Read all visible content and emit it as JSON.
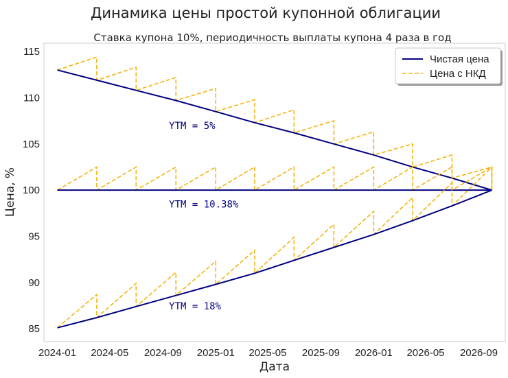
{
  "chart_data": {
    "type": "line",
    "title": "Динамика цены простой купонной облигации",
    "subtitle": "Ставка купона 10%, периодичность выплаты купона 4 раза в год",
    "xlabel": "Дата",
    "ylabel": "Цена, %",
    "ylim": [
      83.6,
      115.9
    ],
    "xlim": [
      "2023-12-01",
      "2026-11-01"
    ],
    "yticks": [
      85,
      90,
      95,
      100,
      105,
      110,
      115
    ],
    "xticks": [
      "2024-01",
      "2024-05",
      "2024-09",
      "2025-01",
      "2025-05",
      "2025-09",
      "2026-01",
      "2026-05",
      "2026-09"
    ],
    "grid": false,
    "legend_position": "top-right",
    "colors": {
      "clean": "#000080",
      "dirty": "#f5b40f",
      "annotation": "#000080"
    },
    "legend": [
      {
        "label": "Чистая цена",
        "style": "solid",
        "color": "#000080"
      },
      {
        "label": "Цена с НКД",
        "style": "dashed",
        "color": "#f5b40f"
      }
    ],
    "coupon_dates": [
      "2024-01-01",
      "2024-04-01",
      "2024-07-01",
      "2024-10-01",
      "2025-01-01",
      "2025-04-01",
      "2025-07-01",
      "2025-10-01",
      "2026-01-01",
      "2026-04-01",
      "2026-07-01",
      "2026-10-01"
    ],
    "series": [
      {
        "annotation": "YTM = 5%",
        "annotation_position": [
          "2024-09-15",
          106.6
        ],
        "clean": [
          113.0,
          111.9,
          110.8,
          109.7,
          108.5,
          107.3,
          106.2,
          105.0,
          103.8,
          102.5,
          101.3,
          100.0
        ]
      },
      {
        "annotation": "YTM = 10.38%",
        "annotation_position": [
          "2024-09-15",
          98.1
        ],
        "clean": [
          100.0,
          100.0,
          100.0,
          100.0,
          100.0,
          100.0,
          100.0,
          100.0,
          100.0,
          100.0,
          100.0,
          100.0
        ]
      },
      {
        "annotation": "YTM = 18%",
        "annotation_position": [
          "2024-09-15",
          87.1
        ],
        "clean": [
          85.1,
          86.2,
          87.4,
          88.6,
          89.8,
          91.0,
          92.4,
          93.8,
          95.2,
          96.7,
          98.3,
          100.0
        ]
      }
    ],
    "coupon_accrued": 2.5
  }
}
